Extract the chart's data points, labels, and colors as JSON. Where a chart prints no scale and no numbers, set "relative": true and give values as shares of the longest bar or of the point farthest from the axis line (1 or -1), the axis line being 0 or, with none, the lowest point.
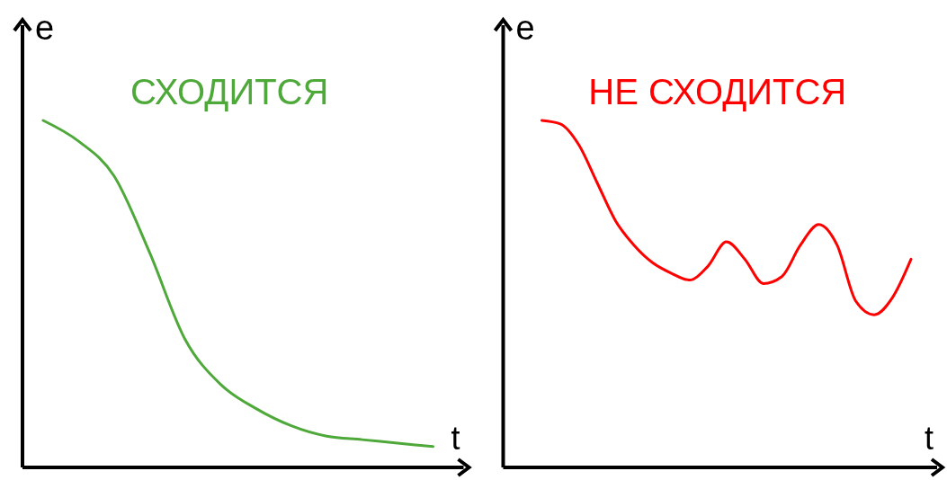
{
  "chart_data": [
    {
      "type": "line",
      "title": "СХОДИТСЯ",
      "xlabel": "t",
      "ylabel": "e",
      "relative": true,
      "categories": [
        null,
        null,
        null,
        null,
        null,
        null,
        null,
        null,
        null,
        null,
        null,
        null
      ],
      "series": [
        {
          "color": "#4fa93a",
          "values": [
            1,
            0.94,
            0.84,
            0.62,
            0.37,
            0.24,
            0.17,
            0.12,
            0.09,
            0.08,
            0.07,
            0.06
          ]
        }
      ]
    },
    {
      "type": "line",
      "title": "НЕ СХОДИТСЯ",
      "xlabel": "t",
      "ylabel": "e",
      "relative": true,
      "categories": [
        null,
        null,
        null,
        null,
        null,
        null,
        null,
        null,
        null,
        null,
        null,
        null,
        null,
        null,
        null,
        null,
        null,
        null,
        null,
        null,
        null
      ],
      "series": [
        {
          "color": "#ff0000",
          "values": [
            1,
            0.99,
            0.93,
            0.82,
            0.71,
            0.64,
            0.59,
            0.56,
            0.54,
            0.58,
            0.65,
            0.6,
            0.53,
            0.55,
            0.64,
            0.7,
            0.64,
            0.48,
            0.44,
            0.49,
            0.6
          ]
        }
      ]
    }
  ]
}
